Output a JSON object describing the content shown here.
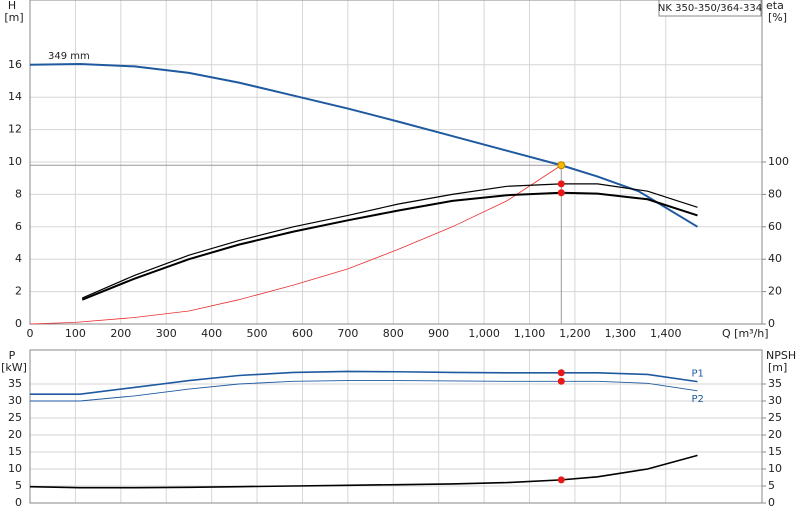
{
  "chart_data": [
    {
      "type": "line",
      "title": "NK 350-350/364-334",
      "y_label": "H",
      "y_unit": "[m]",
      "y2_label": "eta",
      "y2_unit": "[%]",
      "x_label": "Q [m³/h]",
      "xlim": [
        0,
        1612
      ],
      "xticks": [
        0,
        100,
        200,
        300,
        400,
        500,
        600,
        700,
        800,
        900,
        {
          "value": 1000,
          "label": "1,000"
        },
        {
          "value": 1100,
          "label": "1,100"
        },
        {
          "value": 1200,
          "label": "1,200"
        },
        {
          "value": 1300,
          "label": "1,300"
        },
        {
          "value": 1400,
          "label": "1,400"
        }
      ],
      "ylim": [
        0,
        20
      ],
      "yticks": [
        0,
        2,
        4,
        6,
        8,
        10,
        12,
        14,
        16
      ],
      "y2lim": [
        0,
        200
      ],
      "y2ticks": [
        0,
        20,
        40,
        60,
        80,
        100
      ],
      "grid": true,
      "series": [
        {
          "name": "349 mm",
          "color": "#1f5aa0",
          "width": 2,
          "x": [
            0,
            110,
            230,
            350,
            460,
            580,
            700,
            810,
            930,
            1050,
            1170,
            1250,
            1340,
            1470
          ],
          "values": [
            16.0,
            16.05,
            15.9,
            15.5,
            14.9,
            14.1,
            13.3,
            12.5,
            11.6,
            10.7,
            9.8,
            9.1,
            8.2,
            6.0
          ]
        },
        {
          "color": "#e83030",
          "width": 0.8,
          "x": [
            0,
            100,
            230,
            350,
            460,
            580,
            700,
            810,
            930,
            1050,
            1170
          ],
          "values": [
            0,
            0.1,
            0.4,
            0.8,
            1.5,
            2.4,
            3.4,
            4.6,
            6.0,
            7.6,
            9.8
          ]
        },
        {
          "color": "#000000",
          "width": 1.2,
          "axis": "y2",
          "x": [
            115,
            230,
            350,
            460,
            580,
            700,
            810,
            930,
            1050,
            1170,
            1250,
            1360,
            1470
          ],
          "values": [
            16,
            30,
            42.5,
            51.5,
            60,
            67,
            74,
            80,
            85,
            86.5,
            86.5,
            82,
            72
          ]
        },
        {
          "color": "#000000",
          "width": 2,
          "axis": "y2",
          "x": [
            115,
            230,
            350,
            460,
            580,
            700,
            810,
            930,
            1050,
            1170,
            1250,
            1360,
            1470
          ],
          "values": [
            15,
            28,
            40,
            49,
            57,
            64,
            70,
            76,
            79.5,
            81,
            80.5,
            77,
            67
          ]
        }
      ],
      "markers": [
        {
          "x": 1170,
          "y": 9.8,
          "color": "#f5b800",
          "guide": true
        },
        {
          "x": 1170,
          "y": 86.5,
          "color": "#e81818",
          "axis": "y2"
        },
        {
          "x": 1170,
          "y": 81,
          "color": "#e81818",
          "axis": "y2"
        }
      ]
    },
    {
      "type": "line",
      "y_label": "P",
      "y_unit": "[kW]",
      "y2_label": "NPSH",
      "y2_unit": "[m]",
      "xlim": [
        0,
        1612
      ],
      "xticks": [
        0,
        100,
        200,
        300,
        400,
        500,
        600,
        700,
        800,
        900,
        1000,
        1100,
        1200,
        1300,
        1400
      ],
      "ylim": [
        0,
        45
      ],
      "yticks": [
        0,
        5,
        10,
        15,
        20,
        25,
        30,
        35
      ],
      "y2lim": [
        0,
        45
      ],
      "y2ticks": [
        0,
        5,
        10,
        15,
        20,
        25,
        30,
        35
      ],
      "grid": true,
      "series": [
        {
          "name": "P1",
          "color": "#1f5aa0",
          "width": 1.6,
          "x": [
            0,
            110,
            230,
            350,
            460,
            580,
            700,
            810,
            930,
            1050,
            1170,
            1250,
            1360,
            1470
          ],
          "values": [
            32,
            32,
            34,
            36,
            37.5,
            38.4,
            38.7,
            38.6,
            38.4,
            38.3,
            38.3,
            38.3,
            37.8,
            35.7
          ]
        },
        {
          "name": "P2",
          "color": "#1f5aa0",
          "width": 0.9,
          "x": [
            0,
            110,
            230,
            350,
            460,
            580,
            700,
            810,
            930,
            1050,
            1170,
            1250,
            1360,
            1470
          ],
          "values": [
            30,
            30,
            31.5,
            33.5,
            35,
            35.8,
            36,
            36,
            35.9,
            35.8,
            35.8,
            35.8,
            35.2,
            33
          ]
        },
        {
          "color": "#000000",
          "width": 1.6,
          "axis": "y2",
          "x": [
            0,
            110,
            230,
            350,
            460,
            580,
            700,
            810,
            930,
            1050,
            1170,
            1250,
            1360,
            1470
          ],
          "values": [
            4.8,
            4.5,
            4.5,
            4.6,
            4.8,
            5,
            5.2,
            5.4,
            5.6,
            6,
            6.8,
            7.7,
            10,
            14
          ]
        }
      ],
      "markers": [
        {
          "x": 1170,
          "y": 38.3,
          "color": "#e81818"
        },
        {
          "x": 1170,
          "y": 35.8,
          "color": "#e81818"
        },
        {
          "x": 1170,
          "y": 6.8,
          "color": "#e81818",
          "axis": "y2"
        }
      ]
    }
  ]
}
